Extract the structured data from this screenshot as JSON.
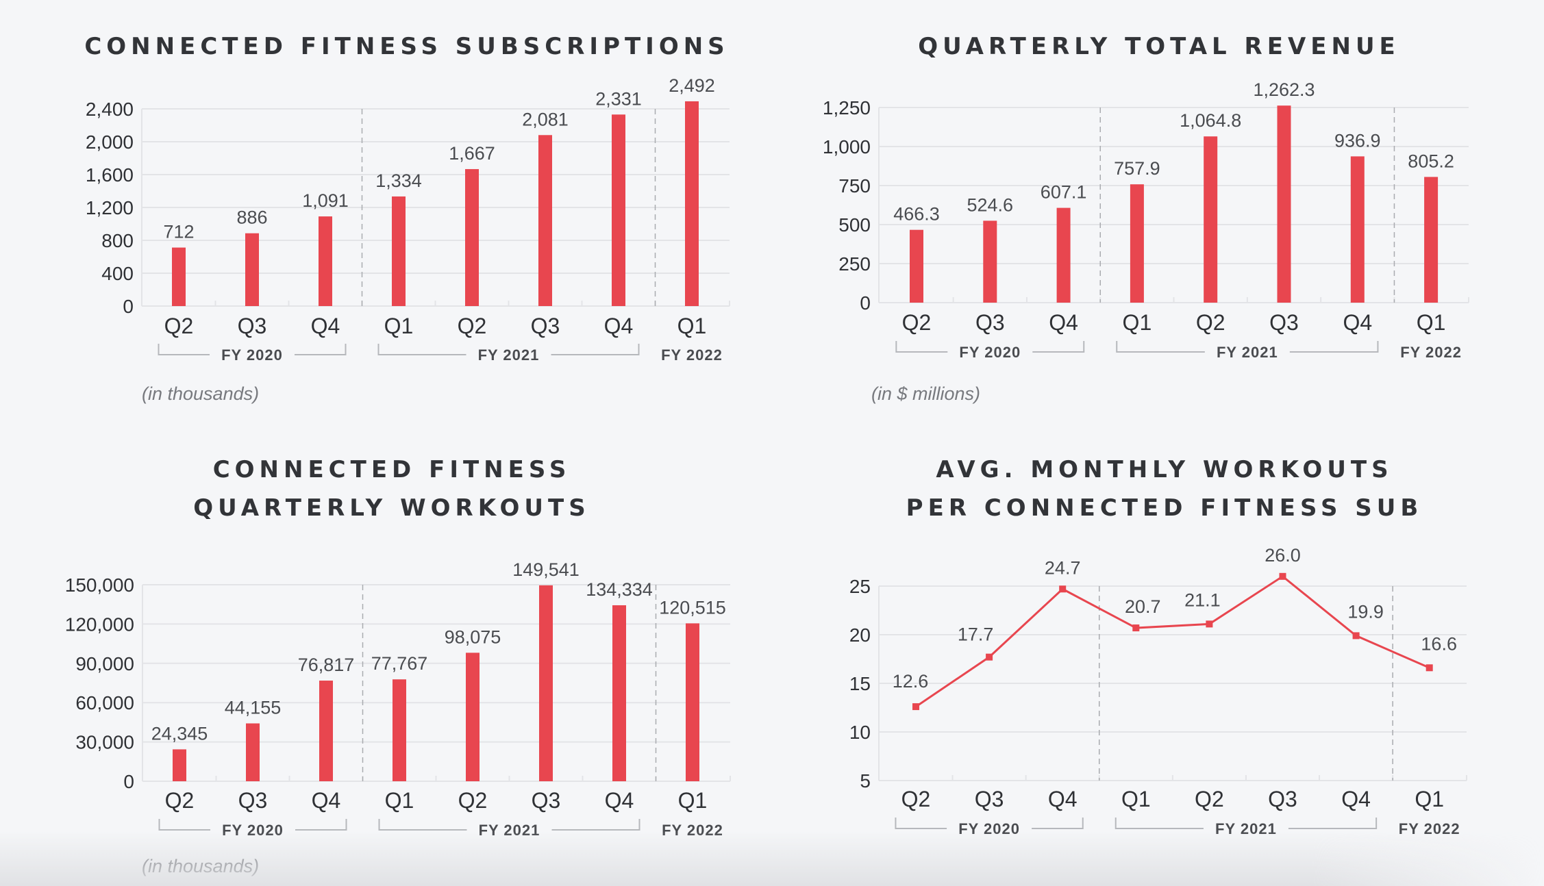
{
  "colors": {
    "accent": "#e8464f",
    "grid": "#e3e4e7",
    "divider": "#a9abaf",
    "bracket": "#b6b8bc"
  },
  "chart_data": [
    {
      "id": "subs",
      "type": "bar",
      "title": "CONNECTED FITNESS SUBSCRIPTIONS",
      "categories": [
        "Q2",
        "Q3",
        "Q4",
        "Q1",
        "Q2",
        "Q3",
        "Q4",
        "Q1"
      ],
      "values": [
        712,
        886,
        1091,
        1334,
        1667,
        2081,
        2331,
        2492
      ],
      "value_labels": [
        "712",
        "886",
        "1,091",
        "1,334",
        "1,667",
        "2,081",
        "2,331",
        "2,492"
      ],
      "yticks": [
        0,
        400,
        800,
        1200,
        1600,
        2000,
        2400
      ],
      "ytick_labels": [
        "0",
        "400",
        "800",
        "1,200",
        "1,600",
        "2,000",
        "2,400"
      ],
      "ylim": [
        0,
        2400
      ],
      "fiscal_groups": [
        {
          "label": "FY 2020",
          "start": 0,
          "end": 2
        },
        {
          "label": "FY 2021",
          "start": 3,
          "end": 6
        },
        {
          "label": "FY 2022",
          "start": 7,
          "end": 7
        }
      ],
      "unit_note": "(in thousands)",
      "xlabel": "",
      "ylabel": "",
      "grid": true
    },
    {
      "id": "revenue",
      "type": "bar",
      "title": "QUARTERLY TOTAL REVENUE",
      "categories": [
        "Q2",
        "Q3",
        "Q4",
        "Q1",
        "Q2",
        "Q3",
        "Q4",
        "Q1"
      ],
      "values": [
        466.3,
        524.6,
        607.1,
        757.9,
        1064.8,
        1262.3,
        936.9,
        805.2
      ],
      "value_labels": [
        "466.3",
        "524.6",
        "607.1",
        "757.9",
        "1,064.8",
        "1,262.3",
        "936.9",
        "805.2"
      ],
      "yticks": [
        0,
        250,
        500,
        750,
        1000,
        1250
      ],
      "ytick_labels": [
        "0",
        "250",
        "500",
        "750",
        "1,000",
        "1,250"
      ],
      "ylim": [
        0,
        1250
      ],
      "fiscal_groups": [
        {
          "label": "FY 2020",
          "start": 0,
          "end": 2
        },
        {
          "label": "FY 2021",
          "start": 3,
          "end": 6
        },
        {
          "label": "FY 2022",
          "start": 7,
          "end": 7
        }
      ],
      "unit_note": "(in $ millions)",
      "xlabel": "",
      "ylabel": "",
      "grid": true
    },
    {
      "id": "workouts",
      "type": "bar",
      "title": "CONNECTED FITNESS\nQUARTERLY WORKOUTS",
      "title_lines": [
        "CONNECTED FITNESS",
        "QUARTERLY WORKOUTS"
      ],
      "categories": [
        "Q2",
        "Q3",
        "Q4",
        "Q1",
        "Q2",
        "Q3",
        "Q4",
        "Q1"
      ],
      "values": [
        24345,
        44155,
        76817,
        77767,
        98075,
        149541,
        134334,
        120515
      ],
      "value_labels": [
        "24,345",
        "44,155",
        "76,817",
        "77,767",
        "98,075",
        "149,541",
        "134,334",
        "120,515"
      ],
      "yticks": [
        0,
        30000,
        60000,
        90000,
        120000,
        150000
      ],
      "ytick_labels": [
        "0",
        "30,000",
        "60,000",
        "90,000",
        "120,000",
        "150,000"
      ],
      "ylim": [
        0,
        150000
      ],
      "fiscal_groups": [
        {
          "label": "FY 2020",
          "start": 0,
          "end": 2
        },
        {
          "label": "FY 2021",
          "start": 3,
          "end": 6
        },
        {
          "label": "FY 2022",
          "start": 7,
          "end": 7
        }
      ],
      "unit_note": "(in thousands)",
      "xlabel": "",
      "ylabel": "",
      "grid": true
    },
    {
      "id": "avg",
      "type": "line",
      "title": "AVG. MONTHLY WORKOUTS\nPER CONNECTED FITNESS SUB",
      "title_lines": [
        "AVG. MONTHLY WORKOUTS",
        "PER CONNECTED FITNESS SUB"
      ],
      "categories": [
        "Q2",
        "Q3",
        "Q4",
        "Q1",
        "Q2",
        "Q3",
        "Q4",
        "Q1"
      ],
      "values": [
        12.6,
        17.7,
        24.7,
        20.7,
        21.1,
        26.0,
        19.9,
        16.6
      ],
      "value_labels": [
        "12.6",
        "17.7",
        "24.7",
        "20.7",
        "21.1",
        "26.0",
        "19.9",
        "16.6"
      ],
      "yticks": [
        5,
        10,
        15,
        20,
        25
      ],
      "ytick_labels": [
        "5",
        "10",
        "15",
        "20",
        "25"
      ],
      "ylim": [
        5,
        25
      ],
      "fiscal_groups": [
        {
          "label": "FY 2020",
          "start": 0,
          "end": 2
        },
        {
          "label": "FY 2021",
          "start": 3,
          "end": 6
        },
        {
          "label": "FY 2022",
          "start": 7,
          "end": 7
        }
      ],
      "xlabel": "",
      "ylabel": "",
      "grid": true
    }
  ]
}
